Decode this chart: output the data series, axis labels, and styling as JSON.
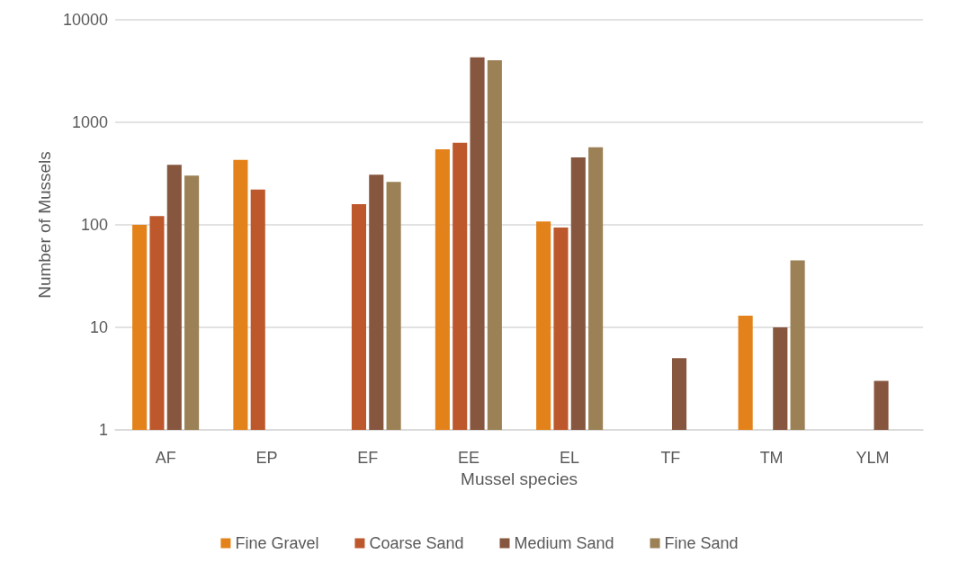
{
  "chart_data": {
    "type": "bar",
    "xlabel": "Mussel species",
    "ylabel": "Number of Mussels",
    "categories": [
      "AF",
      "EP",
      "EF",
      "EE",
      "EL",
      "TF",
      "TM",
      "YLM"
    ],
    "series": [
      {
        "name": "Fine Gravel",
        "color": "#e3821a",
        "values": [
          100,
          430,
          null,
          546,
          108,
          null,
          13,
          null
        ]
      },
      {
        "name": "Coarse Sand",
        "color": "#bd582c",
        "values": [
          122,
          221,
          159,
          632,
          94,
          null,
          null,
          null
        ]
      },
      {
        "name": "Medium Sand",
        "color": "#87563f",
        "values": [
          385,
          null,
          308,
          4300,
          455,
          5,
          10,
          3
        ]
      },
      {
        "name": "Fine Sand",
        "color": "#9b8155",
        "values": [
          302,
          null,
          262,
          4030,
          571,
          null,
          45,
          null
        ]
      }
    ],
    "log": "y",
    "ylim": [
      1,
      10000
    ],
    "yticks": [
      1,
      10,
      100,
      1000,
      10000
    ],
    "grid": "y",
    "legend": "bottom"
  }
}
